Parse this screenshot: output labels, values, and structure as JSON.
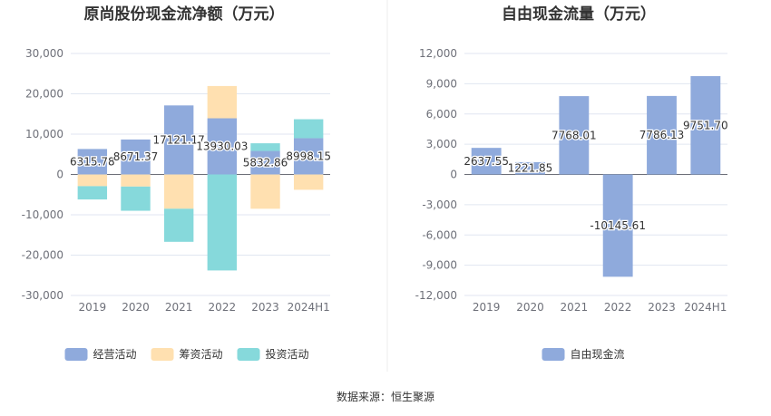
{
  "chart_data": [
    {
      "type": "bar",
      "stacked": true,
      "title": "原尚股份现金流净额（万元）",
      "categories": [
        "2019",
        "2020",
        "2021",
        "2022",
        "2023",
        "2024H1"
      ],
      "ylim": [
        -30000,
        30000
      ],
      "yticks": [
        "30,000",
        "20,000",
        "10,000",
        "0",
        "-10,000",
        "-20,000",
        "-30,000"
      ],
      "grid": true,
      "legend_position": "bottom",
      "series": [
        {
          "name": "经营活动",
          "color": "#8faadc",
          "values": [
            6315.78,
            8671.37,
            17121.17,
            13930.03,
            5832.86,
            8998.15
          ],
          "labels": [
            "6315.78",
            "8671.37",
            "17121.17",
            "13930.03",
            "5832.86",
            "8998.15"
          ]
        },
        {
          "name": "筹资活动",
          "color": "#ffe0b0",
          "values": [
            -2900,
            -3000,
            -8500,
            8000,
            -8500,
            -3800
          ]
        },
        {
          "name": "投资活动",
          "color": "#86d9db",
          "values": [
            -3300,
            -6000,
            -8200,
            -23800,
            1900,
            4700
          ]
        }
      ]
    },
    {
      "type": "bar",
      "title": "自由现金流量（万元）",
      "categories": [
        "2019",
        "2020",
        "2021",
        "2022",
        "2023",
        "2024H1"
      ],
      "ylim": [
        -12000,
        12000
      ],
      "yticks": [
        "12,000",
        "9,000",
        "6,000",
        "3,000",
        "0",
        "-3,000",
        "-6,000",
        "-9,000",
        "-12,000"
      ],
      "grid": true,
      "legend_position": "bottom",
      "series": [
        {
          "name": "自由现金流",
          "color": "#8faadc",
          "values": [
            2637.55,
            1221.85,
            7768.01,
            -10145.61,
            7786.13,
            9751.7
          ],
          "labels": [
            "2637.55",
            "1221.85",
            "7768.01",
            "-10145.61",
            "7786.13",
            "9751.70"
          ]
        }
      ]
    }
  ],
  "source": "数据来源：恒生聚源"
}
